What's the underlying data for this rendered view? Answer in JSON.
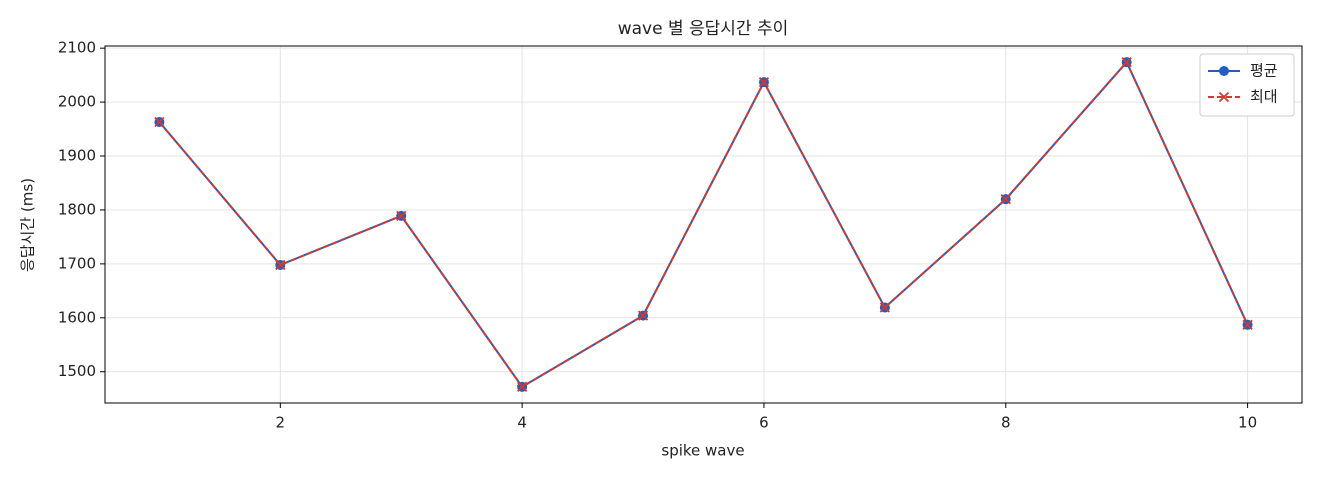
{
  "chart_data": {
    "type": "line",
    "title": "wave 별 응답시간 추이",
    "xlabel": "spike wave",
    "ylabel": "응답시간 (ms)",
    "x": [
      1,
      2,
      3,
      4,
      5,
      6,
      7,
      8,
      9,
      10
    ],
    "series": [
      {
        "name": "평균",
        "color": "#1f5fbf",
        "marker": "o",
        "linestyle": "solid",
        "values": [
          1963,
          1698,
          1789,
          1472,
          1604,
          2037,
          1619,
          1820,
          2074,
          1587
        ]
      },
      {
        "name": "최대",
        "color": "#d03a33",
        "marker": "x",
        "linestyle": "dashed",
        "values": [
          1963,
          1698,
          1789,
          1472,
          1604,
          2037,
          1619,
          1820,
          2074,
          1587
        ]
      }
    ],
    "xlim": [
      0.55,
      10.45
    ],
    "xticks": [
      2,
      4,
      6,
      8,
      10
    ],
    "ylim": [
      1442,
      2104
    ],
    "yticks": [
      1500,
      1600,
      1700,
      1800,
      1900,
      2000,
      2100
    ],
    "grid": true,
    "legend": "upper right"
  }
}
